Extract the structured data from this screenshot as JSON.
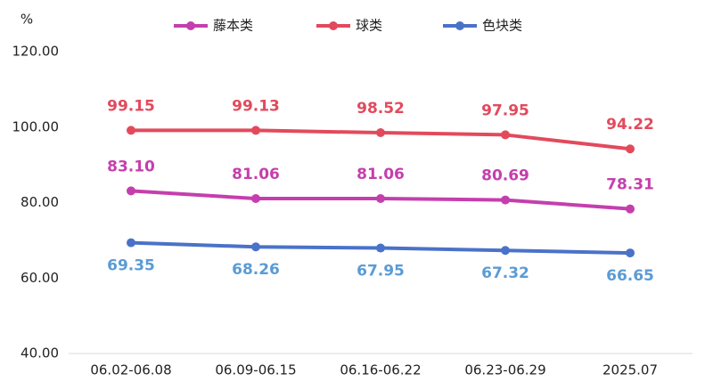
{
  "chart_data": {
    "type": "line",
    "y_axis_label": "%",
    "categories": [
      "06.02-06.08",
      "06.09-06.15",
      "06.16-06.22",
      "06.23-06.29",
      "2025.07"
    ],
    "series": [
      {
        "name": "藤本类",
        "color": "#c43fad",
        "label_color": "#c43fad",
        "label_position": "above",
        "values": [
          83.1,
          81.06,
          81.06,
          80.69,
          78.31
        ],
        "value_labels": [
          "83.10",
          "81.06",
          "81.06",
          "80.69",
          "78.31"
        ]
      },
      {
        "name": "球类",
        "color": "#e24a5c",
        "label_color": "#e24a5c",
        "label_position": "above",
        "values": [
          99.15,
          99.13,
          98.52,
          97.95,
          94.22
        ],
        "value_labels": [
          "99.15",
          "99.13",
          "98.52",
          "97.95",
          "94.22"
        ]
      },
      {
        "name": "色块类",
        "color": "#4a72c8",
        "label_color": "#5b9bd5",
        "label_position": "below",
        "values": [
          69.35,
          68.26,
          67.95,
          67.32,
          66.65
        ],
        "value_labels": [
          "69.35",
          "68.26",
          "67.95",
          "67.32",
          "66.65"
        ]
      }
    ],
    "ylim": [
      40,
      120
    ],
    "yticks": [
      {
        "value": 40,
        "label": "40.00"
      },
      {
        "value": 60,
        "label": "60.00"
      },
      {
        "value": 80,
        "label": "80.00"
      },
      {
        "value": 100,
        "label": "100.00"
      },
      {
        "value": 120,
        "label": "120.00"
      }
    ],
    "grid": false,
    "legend": "top"
  }
}
